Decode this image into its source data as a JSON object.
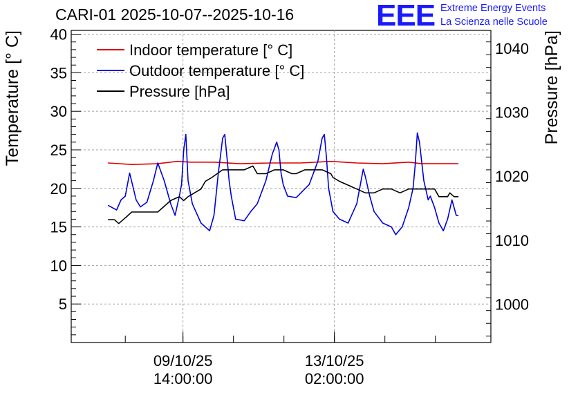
{
  "header": {
    "title": "CARI-01 2025-10-07--2025-10-16",
    "logo_text": "EEE",
    "logo_line1": "Extreme Energy Events",
    "logo_line2": "La Scienza nelle Scuole"
  },
  "chart_data": {
    "type": "line",
    "title": "CARI-01 2025-10-07--2025-10-16",
    "ylabel": "Temperature [° C]",
    "y2label": "Pressure [hPa]",
    "ylim": [
      0,
      40.5
    ],
    "y2lim": [
      994,
      1042.8
    ],
    "yticks": [
      5,
      10,
      15,
      20,
      25,
      30,
      35,
      40
    ],
    "y2ticks": [
      1000,
      1010,
      1020,
      1030,
      1040
    ],
    "xlim": [
      0,
      9.7
    ],
    "x_unit": "days since 2025-10-07 00:00",
    "x_tick_labels": [
      {
        "x": 2.583,
        "date": "09/10/25",
        "time": "14:00:00"
      },
      {
        "x": 6.083,
        "date": "13/10/25",
        "time": "02:00:00"
      }
    ],
    "x_minor_ticks": [
      1.25,
      2.583,
      3.75,
      4.917,
      6.083,
      7.25,
      8.417
    ],
    "grid": true,
    "legend_position": "top-left",
    "series": [
      {
        "name": "Indoor temperature [° C]",
        "color": "#dd0000",
        "axis": "left",
        "x": [
          0.85,
          1.4,
          2.0,
          2.45,
          2.75,
          3.3,
          3.9,
          4.6,
          5.3,
          6.0,
          6.6,
          7.2,
          7.8,
          8.1,
          8.95
        ],
        "y": [
          23.3,
          23.1,
          23.2,
          23.5,
          23.4,
          23.4,
          23.2,
          23.3,
          23.3,
          23.5,
          23.3,
          23.2,
          23.4,
          23.2,
          23.2
        ]
      },
      {
        "name": "Outdoor temperature [° C]",
        "color": "#0000dd",
        "axis": "left",
        "x": [
          0.85,
          0.95,
          1.05,
          1.15,
          1.25,
          1.35,
          1.5,
          1.6,
          1.75,
          1.9,
          2.0,
          2.15,
          2.3,
          2.4,
          2.5,
          2.55,
          2.6,
          2.65,
          2.7,
          2.8,
          3.0,
          3.2,
          3.3,
          3.4,
          3.5,
          3.55,
          3.6,
          3.65,
          3.7,
          3.8,
          4.0,
          4.15,
          4.3,
          4.5,
          4.65,
          4.75,
          4.8,
          4.85,
          4.9,
          5.0,
          5.2,
          5.5,
          5.7,
          5.8,
          5.85,
          5.9,
          5.95,
          6.05,
          6.2,
          6.4,
          6.6,
          6.7,
          6.75,
          6.8,
          6.9,
          7.0,
          7.2,
          7.4,
          7.5,
          7.65,
          7.8,
          7.9,
          7.95,
          8.0,
          8.05,
          8.15,
          8.25,
          8.3,
          8.4,
          8.5,
          8.6,
          8.7,
          8.8,
          8.9,
          8.95
        ],
        "y": [
          17.8,
          17.5,
          17.2,
          18.5,
          19.0,
          22.0,
          18.5,
          17.6,
          18.2,
          21.0,
          23.3,
          21.0,
          18.0,
          16.5,
          19.0,
          20.5,
          25.0,
          27.0,
          21.0,
          18.0,
          15.5,
          14.5,
          16.5,
          22.0,
          26.5,
          27.0,
          24.0,
          21.0,
          19.0,
          16.0,
          15.8,
          17.0,
          18.0,
          21.0,
          24.5,
          26.0,
          25.0,
          22.0,
          20.5,
          19.0,
          18.8,
          20.5,
          23.5,
          26.5,
          27.0,
          24.0,
          20.0,
          17.0,
          16.0,
          15.5,
          18.0,
          21.0,
          22.5,
          21.5,
          19.0,
          17.0,
          15.5,
          15.0,
          14.0,
          15.0,
          17.5,
          20.0,
          23.0,
          27.2,
          26.0,
          21.0,
          18.5,
          19.0,
          17.5,
          15.5,
          14.5,
          16.0,
          18.5,
          16.5,
          16.5
        ]
      },
      {
        "name": "Pressure [hPa]",
        "color": "#000000",
        "axis": "right",
        "x": [
          0.85,
          1.0,
          1.1,
          1.2,
          1.3,
          1.4,
          1.8,
          2.0,
          2.1,
          2.2,
          2.3,
          2.5,
          2.6,
          2.7,
          2.85,
          3.0,
          3.1,
          3.25,
          3.5,
          3.75,
          4.0,
          4.2,
          4.3,
          4.5,
          4.7,
          4.9,
          5.1,
          5.2,
          5.4,
          5.6,
          5.8,
          6.0,
          6.05,
          6.2,
          6.4,
          6.6,
          6.8,
          7.0,
          7.2,
          7.4,
          7.6,
          7.8,
          8.0,
          8.2,
          8.4,
          8.5,
          8.6,
          8.7,
          8.75,
          8.85,
          8.95
        ],
        "y": [
          1013.2,
          1013.2,
          1012.6,
          1013.2,
          1013.8,
          1014.4,
          1014.4,
          1014.4,
          1015.0,
          1015.6,
          1016.2,
          1016.8,
          1016.2,
          1016.8,
          1017.4,
          1018.0,
          1019.2,
          1019.8,
          1021.0,
          1021.0,
          1021.0,
          1021.6,
          1020.4,
          1020.4,
          1021.0,
          1021.0,
          1020.4,
          1020.4,
          1021.0,
          1021.0,
          1021.0,
          1020.4,
          1019.8,
          1019.2,
          1018.6,
          1018.0,
          1017.4,
          1017.4,
          1018.0,
          1018.0,
          1017.4,
          1018.0,
          1018.0,
          1018.0,
          1018.0,
          1016.8,
          1016.8,
          1016.8,
          1017.4,
          1016.8,
          1016.8
        ]
      }
    ]
  }
}
